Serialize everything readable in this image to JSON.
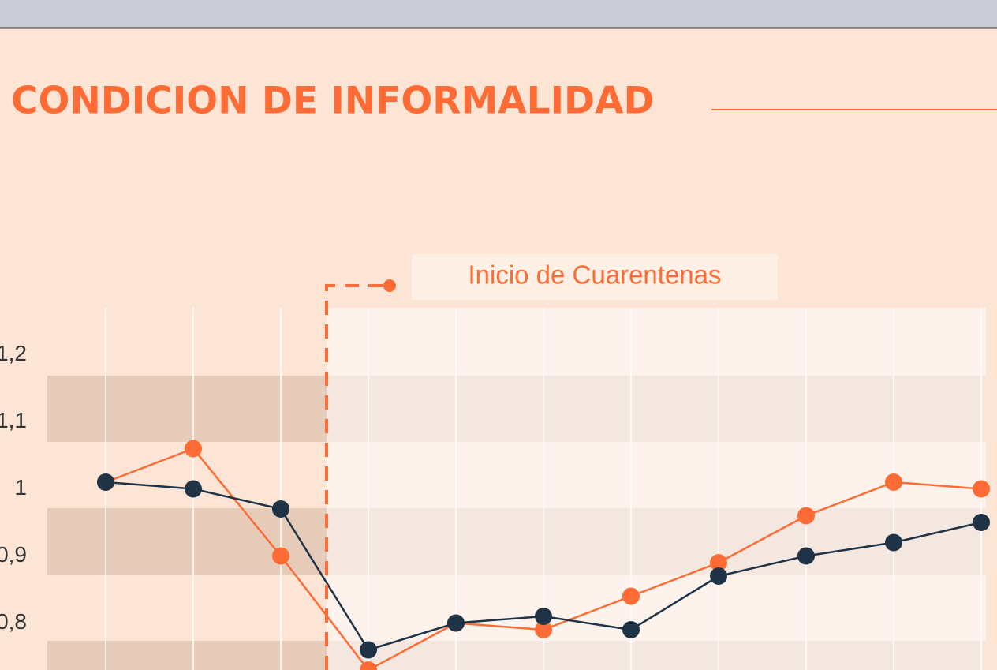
{
  "chart_data": {
    "type": "line",
    "title": "CONDICION DE INFORMALIDAD",
    "annotation": "Inicio de Cuarentenas",
    "categories": [
      null,
      null,
      null,
      null,
      null,
      null,
      null,
      null,
      null,
      null,
      null
    ],
    "series": [
      {
        "color": "#ff6b35",
        "values": [
          1.01,
          1.06,
          0.9,
          0.73,
          0.8,
          0.79,
          0.84,
          0.89,
          0.96,
          1.01,
          1.0
        ]
      },
      {
        "color": "#1f3347",
        "values": [
          1.01,
          1.0,
          0.97,
          0.76,
          0.8,
          0.81,
          0.79,
          0.87,
          0.9,
          0.92,
          0.95
        ]
      }
    ],
    "ylim": [
      0.73,
      1.27
    ],
    "yticks": [
      {
        "value": 1.2,
        "label": "1,2"
      },
      {
        "value": 1.1,
        "label": "1,1"
      },
      1,
      {
        "value": 0.9,
        "label": "0,9"
      },
      {
        "value": 0.8,
        "label": "0,8"
      }
    ],
    "grid": true
  }
}
